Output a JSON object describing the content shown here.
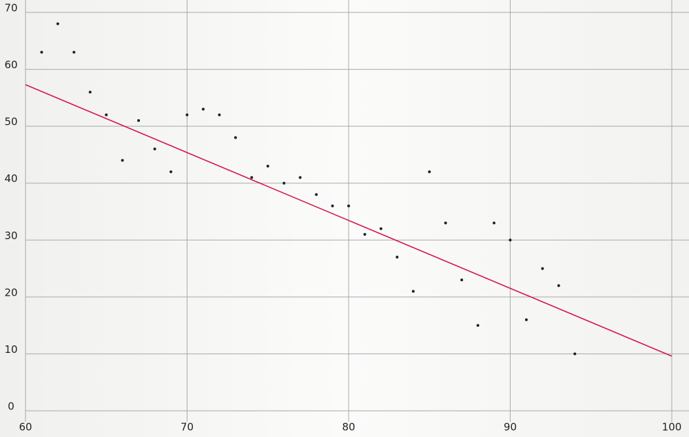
{
  "chart_data": {
    "type": "scatter",
    "x": [
      61,
      62,
      63,
      64,
      65,
      66,
      67,
      68,
      69,
      70,
      71,
      72,
      73,
      74,
      75,
      76,
      77,
      78,
      79,
      80,
      81,
      82,
      83,
      84,
      85,
      86,
      87,
      88,
      89,
      90,
      91,
      92,
      93,
      94
    ],
    "values": [
      63,
      68,
      63,
      56,
      52,
      44,
      51,
      46,
      42,
      52,
      53,
      52,
      48,
      41,
      43,
      40,
      41,
      38,
      36,
      36,
      31,
      32,
      27,
      21,
      42,
      33,
      23,
      15,
      33,
      30,
      16,
      25,
      22,
      10
    ],
    "color": "#1c2038",
    "trend": {
      "x": [
        60,
        100
      ],
      "values": [
        57.3,
        9.6
      ],
      "color": "#d3184a"
    },
    "xlim": [
      60,
      100
    ],
    "ylim": [
      0,
      70
    ],
    "xticks": [
      60,
      70,
      80,
      90,
      100
    ],
    "yticks": [
      0,
      10,
      20,
      30,
      40,
      50,
      60,
      70
    ],
    "grid": true
  }
}
